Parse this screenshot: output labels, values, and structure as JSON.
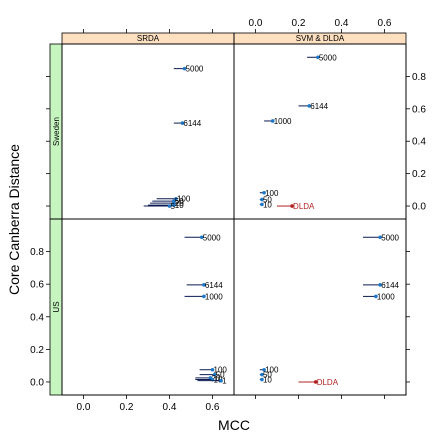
{
  "chart_data": {
    "type": "scatter",
    "xlabel": "MCC",
    "ylabel": "Core Canberra Distance",
    "xlim": [
      -0.1,
      0.7
    ],
    "ylim": [
      -0.08,
      1.0
    ],
    "x_ticks": [
      0.0,
      0.2,
      0.4,
      0.6
    ],
    "x_tick_labels": [
      "0.0",
      "0.2",
      "0.4",
      "0.6"
    ],
    "y_ticks": [
      0.0,
      0.2,
      0.4,
      0.6,
      0.8
    ],
    "y_tick_labels": [
      "0.0",
      "0.2",
      "0.4",
      "0.6",
      "0.8"
    ],
    "columns": [
      "SRDA",
      "SVM & DLDA"
    ],
    "rows": [
      "Sweden",
      "US"
    ],
    "colors": {
      "point": "#1e78c8",
      "segment": "#0a1a50",
      "dlda": "#b22222",
      "strip_top": "#fde0c0",
      "strip_side": "#c6f5c0"
    },
    "panels": [
      {
        "column": "SRDA",
        "row": "Sweden",
        "points": [
          {
            "label": "5000",
            "x": 0.47,
            "x0": 0.42,
            "y": 0.848
          },
          {
            "label": "6144",
            "x": 0.46,
            "x0": 0.42,
            "y": 0.512
          },
          {
            "label": "100",
            "x": 0.43,
            "x0": 0.34,
            "y": 0.045
          },
          {
            "label": "50",
            "x": 0.42,
            "x0": 0.32,
            "y": 0.03
          },
          {
            "label": "20",
            "x": 0.42,
            "x0": 0.31,
            "y": 0.018
          },
          {
            "label": "10",
            "x": 0.42,
            "x0": 0.3,
            "y": 0.006
          },
          {
            "label": "5",
            "x": 0.4,
            "x0": 0.28,
            "y": 0.0
          }
        ]
      },
      {
        "column": "SVM & DLDA",
        "row": "Sweden",
        "points": [
          {
            "label": "5000",
            "x": 0.29,
            "x0": 0.24,
            "y": 0.918
          },
          {
            "label": "6144",
            "x": 0.25,
            "x0": 0.2,
            "y": 0.618
          },
          {
            "label": "1000",
            "x": 0.08,
            "x0": 0.04,
            "y": 0.525
          },
          {
            "label": "100",
            "x": 0.04,
            "x0": 0.02,
            "y": 0.082
          },
          {
            "label": "50",
            "x": 0.03,
            "x0": 0.02,
            "y": 0.04
          },
          {
            "label": "10",
            "x": 0.03,
            "x0": 0.02,
            "y": 0.01
          },
          {
            "label": "DLDA",
            "x": 0.17,
            "x0": 0.1,
            "y": 0.0,
            "red": true
          }
        ]
      },
      {
        "column": "SRDA",
        "row": "US",
        "points": [
          {
            "label": "5000",
            "x": 0.55,
            "x0": 0.47,
            "y": 0.888
          },
          {
            "label": "6144",
            "x": 0.56,
            "x0": 0.48,
            "y": 0.596
          },
          {
            "label": "1000",
            "x": 0.56,
            "x0": 0.47,
            "y": 0.525
          },
          {
            "label": "100",
            "x": 0.6,
            "x0": 0.54,
            "y": 0.075
          },
          {
            "label": "50",
            "x": 0.61,
            "x0": 0.54,
            "y": 0.045
          },
          {
            "label": "20",
            "x": 0.59,
            "x0": 0.52,
            "y": 0.025
          },
          {
            "label": "10",
            "x": 0.6,
            "x0": 0.52,
            "y": 0.015
          },
          {
            "label": "1",
            "x": 0.64,
            "x0": 0.53,
            "y": 0.008
          }
        ]
      },
      {
        "column": "SVM & DLDA",
        "row": "US",
        "points": [
          {
            "label": "5000",
            "x": 0.58,
            "x0": 0.5,
            "y": 0.888
          },
          {
            "label": "6144",
            "x": 0.58,
            "x0": 0.5,
            "y": 0.596
          },
          {
            "label": "1000",
            "x": 0.56,
            "x0": 0.5,
            "y": 0.525
          },
          {
            "label": "100",
            "x": 0.04,
            "x0": 0.02,
            "y": 0.075
          },
          {
            "label": "50",
            "x": 0.03,
            "x0": 0.02,
            "y": 0.045
          },
          {
            "label": "10",
            "x": 0.03,
            "x0": 0.02,
            "y": 0.015
          },
          {
            "label": "DLDA",
            "x": 0.28,
            "x0": 0.2,
            "y": 0.0,
            "red": true
          }
        ]
      }
    ]
  }
}
